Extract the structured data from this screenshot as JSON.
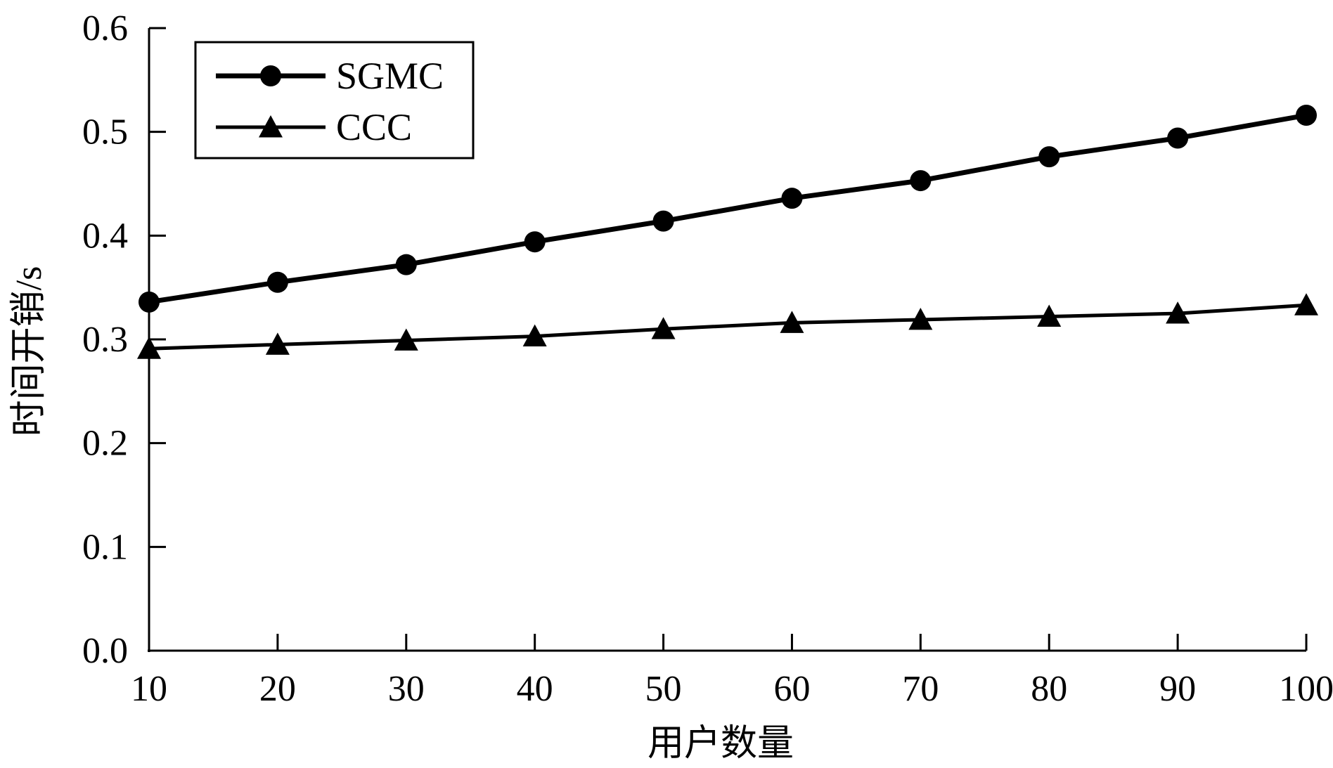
{
  "chart_data": {
    "type": "line",
    "title": "",
    "xlabel": "用户数量",
    "ylabel": "时间开销/s",
    "x": [
      10,
      20,
      30,
      40,
      50,
      60,
      70,
      80,
      90,
      100
    ],
    "xlim": [
      10,
      100
    ],
    "ylim": [
      0.0,
      0.6
    ],
    "x_ticks": [
      "10",
      "20",
      "30",
      "40",
      "50",
      "60",
      "70",
      "80",
      "90",
      "100"
    ],
    "y_ticks": [
      "0.0",
      "0.1",
      "0.2",
      "0.3",
      "0.4",
      "0.5",
      "0.6"
    ],
    "grid": false,
    "legend_position": "top-left",
    "series": [
      {
        "name": "SGMC",
        "marker": "circle",
        "color": "#000000",
        "values": [
          0.336,
          0.355,
          0.372,
          0.394,
          0.414,
          0.436,
          0.453,
          0.476,
          0.494,
          0.516
        ]
      },
      {
        "name": "CCC",
        "marker": "triangle",
        "color": "#000000",
        "values": [
          0.291,
          0.295,
          0.299,
          0.303,
          0.31,
          0.316,
          0.319,
          0.322,
          0.325,
          0.333
        ]
      }
    ]
  }
}
